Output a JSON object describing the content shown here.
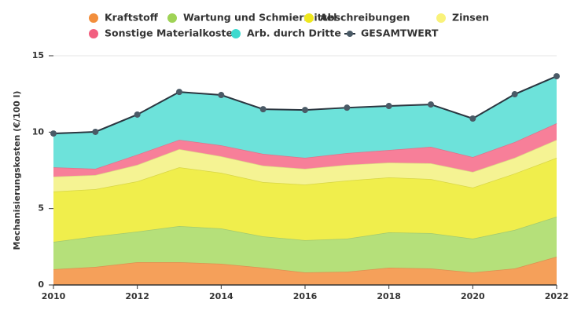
{
  "chart_data": {
    "type": "area",
    "stacked": true,
    "y_label": "Mechanisierungskosten (€/100 l)",
    "x": [
      2010,
      2011,
      2012,
      2013,
      2014,
      2015,
      2016,
      2017,
      2018,
      2019,
      2020,
      2021,
      2022
    ],
    "xlim": [
      2010,
      2022
    ],
    "xticks": [
      2010,
      2012,
      2014,
      2016,
      2018,
      2020,
      2022
    ],
    "ylim": [
      0,
      15
    ],
    "yticks": [
      0,
      5,
      10,
      15
    ],
    "grid": true,
    "series": [
      {
        "name": "Kraftstoff",
        "color": "#f5a05a",
        "values": [
          1.03,
          1.18,
          1.49,
          1.49,
          1.39,
          1.13,
          0.82,
          0.87,
          1.13,
          1.08,
          0.82,
          1.08,
          1.85
        ]
      },
      {
        "name": "Wartung und Schmiermittel",
        "color": "#b5e07a",
        "values": [
          1.79,
          2.0,
          2.0,
          2.36,
          2.31,
          2.05,
          2.11,
          2.16,
          2.31,
          2.31,
          2.21,
          2.52,
          2.62
        ]
      },
      {
        "name": "Abschreibungen",
        "color": "#f0ee4c",
        "values": [
          3.29,
          3.09,
          3.29,
          3.85,
          3.64,
          3.55,
          3.64,
          3.8,
          3.6,
          3.54,
          3.34,
          3.69,
          3.85
        ]
      },
      {
        "name": "Zinsen",
        "color": "#f5f393",
        "values": [
          0.98,
          0.92,
          1.08,
          1.19,
          1.08,
          1.08,
          1.03,
          1.03,
          0.97,
          1.03,
          1.03,
          1.03,
          1.18
        ]
      },
      {
        "name": "Sonstige Materialkosten",
        "color": "#f77f99",
        "values": [
          0.61,
          0.41,
          0.67,
          0.61,
          0.72,
          0.77,
          0.72,
          0.77,
          0.82,
          1.08,
          0.97,
          1.03,
          1.08
        ]
      },
      {
        "name": "Arb. durch Dritte",
        "color": "#6de2da",
        "values": [
          2.21,
          2.42,
          2.62,
          3.13,
          3.29,
          2.92,
          3.13,
          2.97,
          2.88,
          2.77,
          2.52,
          3.13,
          3.08
        ]
      },
      {
        "name": "GESAMTWERT",
        "color": "#2b3640",
        "type": "line",
        "values": [
          9.91,
          10.02,
          11.15,
          12.63,
          12.43,
          11.5,
          11.45,
          11.6,
          11.71,
          11.81,
          10.89,
          12.48,
          13.66
        ]
      }
    ]
  }
}
